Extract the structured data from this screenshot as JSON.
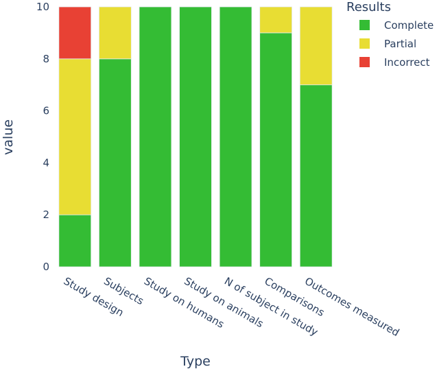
{
  "chart_data": {
    "type": "bar",
    "barmode": "stack",
    "title": "",
    "xlabel": "Type",
    "ylabel": "value",
    "ylim": [
      0,
      10
    ],
    "yticks": [
      0,
      2,
      4,
      6,
      8,
      10
    ],
    "grid": false,
    "legend_position": "top-right",
    "legend_title": "Results",
    "categories": [
      "Study design",
      "Subjects",
      "Study on humans",
      "Study on animals",
      "N of subject in study",
      "Comparisons",
      "Outcomes measured"
    ],
    "series": [
      {
        "name": "Complete",
        "color": "#34bc34",
        "values": [
          2,
          8,
          10,
          10,
          10,
          9,
          7
        ]
      },
      {
        "name": "Partial",
        "color": "#e8dd33",
        "values": [
          6,
          2,
          0,
          0,
          0,
          1,
          3
        ]
      },
      {
        "name": "Incorrect",
        "color": "#e84134",
        "values": [
          2,
          0,
          0,
          0,
          0,
          0,
          0
        ]
      }
    ]
  }
}
